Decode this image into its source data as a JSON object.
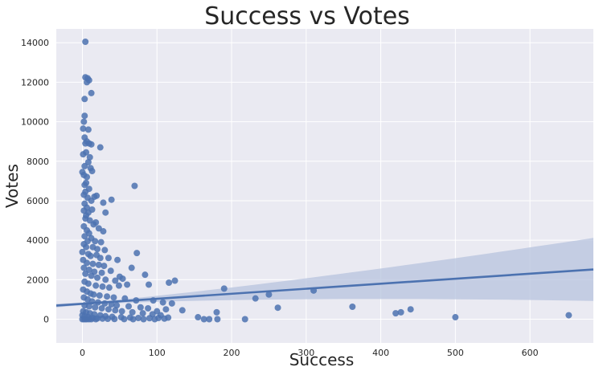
{
  "chart_data": {
    "type": "scatter",
    "title": "Success vs Votes",
    "xlabel": "Success",
    "ylabel": "Votes",
    "xlim": [
      -35,
      685
    ],
    "ylim": [
      -1200,
      14700
    ],
    "x_ticks": [
      0,
      100,
      200,
      300,
      400,
      500,
      600
    ],
    "y_ticks": [
      0,
      2000,
      4000,
      6000,
      8000,
      10000,
      12000,
      14000
    ],
    "grid": true,
    "legend": "none",
    "colors": {
      "background": "#eaeaf2",
      "grid": "#ffffff",
      "point": "#4c72b0",
      "line": "#4c72b0",
      "confidence_band": "#b7c3dd",
      "text": "#262626"
    },
    "regression": {
      "x": [
        -35,
        685
      ],
      "y": [
        690,
        2520
      ],
      "ci_upper_at_max": 4750,
      "ci_lower_at_max": 1560
    },
    "points": [
      [
        4,
        14050
      ],
      [
        4,
        12250
      ],
      [
        7,
        12200
      ],
      [
        9,
        12100
      ],
      [
        6,
        12000
      ],
      [
        12,
        11450
      ],
      [
        3,
        11150
      ],
      [
        3,
        10300
      ],
      [
        2,
        10000
      ],
      [
        1,
        9650
      ],
      [
        8,
        9600
      ],
      [
        3,
        9200
      ],
      [
        6,
        9000
      ],
      [
        9,
        8900
      ],
      [
        12,
        8850
      ],
      [
        4,
        8900
      ],
      [
        24,
        8700
      ],
      [
        5,
        8450
      ],
      [
        1,
        8350
      ],
      [
        10,
        8200
      ],
      [
        8,
        7950
      ],
      [
        3,
        7750
      ],
      [
        11,
        7650
      ],
      [
        13,
        7500
      ],
      [
        0,
        7450
      ],
      [
        2,
        7300
      ],
      [
        6,
        7200
      ],
      [
        5,
        6900
      ],
      [
        3,
        6800
      ],
      [
        9,
        6600
      ],
      [
        4,
        6450
      ],
      [
        2,
        6300
      ],
      [
        7,
        6150
      ],
      [
        12,
        6000
      ],
      [
        16,
        6200
      ],
      [
        19,
        6250
      ],
      [
        28,
        5900
      ],
      [
        39,
        6050
      ],
      [
        70,
        6750
      ],
      [
        3,
        5850
      ],
      [
        6,
        5650
      ],
      [
        2,
        5500
      ],
      [
        8,
        5400
      ],
      [
        13,
        5550
      ],
      [
        31,
        5400
      ],
      [
        5,
        5250
      ],
      [
        4,
        5100
      ],
      [
        10,
        5000
      ],
      [
        18,
        4900
      ],
      [
        15,
        4800
      ],
      [
        22,
        4600
      ],
      [
        28,
        4450
      ],
      [
        2,
        4700
      ],
      [
        6,
        4500
      ],
      [
        9,
        4350
      ],
      [
        3,
        4200
      ],
      [
        12,
        4100
      ],
      [
        7,
        3950
      ],
      [
        17,
        3950
      ],
      [
        25,
        3900
      ],
      [
        2,
        3800
      ],
      [
        5,
        3650
      ],
      [
        14,
        3650
      ],
      [
        20,
        3550
      ],
      [
        30,
        3500
      ],
      [
        0,
        3400
      ],
      [
        8,
        3300
      ],
      [
        11,
        3200
      ],
      [
        19,
        3250
      ],
      [
        24,
        3100
      ],
      [
        35,
        3100
      ],
      [
        47,
        3000
      ],
      [
        73,
        3350
      ],
      [
        1,
        3000
      ],
      [
        6,
        2850
      ],
      [
        14,
        2800
      ],
      [
        22,
        2750
      ],
      [
        29,
        2700
      ],
      [
        2,
        2600
      ],
      [
        9,
        2500
      ],
      [
        16,
        2400
      ],
      [
        26,
        2350
      ],
      [
        38,
        2450
      ],
      [
        66,
        2600
      ],
      [
        84,
        2250
      ],
      [
        50,
        2150
      ],
      [
        54,
        2050
      ],
      [
        4,
        2300
      ],
      [
        12,
        2200
      ],
      [
        20,
        2100
      ],
      [
        31,
        2000
      ],
      [
        44,
        1950
      ],
      [
        124,
        1950
      ],
      [
        116,
        1850
      ],
      [
        89,
        1750
      ],
      [
        60,
        1750
      ],
      [
        3,
        1900
      ],
      [
        8,
        1800
      ],
      [
        18,
        1700
      ],
      [
        27,
        1650
      ],
      [
        36,
        1600
      ],
      [
        49,
        1700
      ],
      [
        190,
        1550
      ],
      [
        310,
        1450
      ],
      [
        250,
        1250
      ],
      [
        232,
        1050
      ],
      [
        1,
        1500
      ],
      [
        6,
        1400
      ],
      [
        11,
        1300
      ],
      [
        15,
        1250
      ],
      [
        23,
        1200
      ],
      [
        33,
        1150
      ],
      [
        42,
        1100
      ],
      [
        57,
        1050
      ],
      [
        72,
        950
      ],
      [
        95,
        950
      ],
      [
        108,
        850
      ],
      [
        120,
        800
      ],
      [
        134,
        450
      ],
      [
        2,
        1100
      ],
      [
        7,
        1000
      ],
      [
        13,
        900
      ],
      [
        21,
        850
      ],
      [
        30,
        800
      ],
      [
        39,
        750
      ],
      [
        46,
        700
      ],
      [
        62,
        650
      ],
      [
        78,
        600
      ],
      [
        88,
        550
      ],
      [
        112,
        500
      ],
      [
        100,
        400
      ],
      [
        3,
        700
      ],
      [
        9,
        650
      ],
      [
        17,
        600
      ],
      [
        26,
        550
      ],
      [
        35,
        500
      ],
      [
        44,
        450
      ],
      [
        53,
        400
      ],
      [
        67,
        350
      ],
      [
        81,
        300
      ],
      [
        94,
        250
      ],
      [
        105,
        200
      ],
      [
        180,
        350
      ],
      [
        262,
        580
      ],
      [
        362,
        630
      ],
      [
        420,
        300
      ],
      [
        427,
        350
      ],
      [
        440,
        500
      ],
      [
        1,
        400
      ],
      [
        5,
        350
      ],
      [
        10,
        300
      ],
      [
        16,
        250
      ],
      [
        24,
        200
      ],
      [
        31,
        150
      ],
      [
        40,
        120
      ],
      [
        52,
        100
      ],
      [
        64,
        80
      ],
      [
        75,
        60
      ],
      [
        90,
        50
      ],
      [
        102,
        60
      ],
      [
        115,
        80
      ],
      [
        155,
        100
      ],
      [
        163,
        0
      ],
      [
        170,
        0
      ],
      [
        181,
        0
      ],
      [
        218,
        0
      ],
      [
        500,
        100
      ],
      [
        652,
        200
      ],
      [
        0,
        200
      ],
      [
        3,
        150
      ],
      [
        8,
        100
      ],
      [
        14,
        60
      ],
      [
        20,
        40
      ],
      [
        27,
        30
      ],
      [
        34,
        20
      ],
      [
        43,
        10
      ],
      [
        56,
        5
      ],
      [
        68,
        0
      ],
      [
        82,
        0
      ],
      [
        97,
        0
      ],
      [
        110,
        30
      ],
      [
        0,
        0
      ],
      [
        2,
        0
      ],
      [
        4,
        0
      ],
      [
        6,
        0
      ],
      [
        9,
        0
      ],
      [
        12,
        0
      ],
      [
        18,
        0
      ]
    ]
  }
}
